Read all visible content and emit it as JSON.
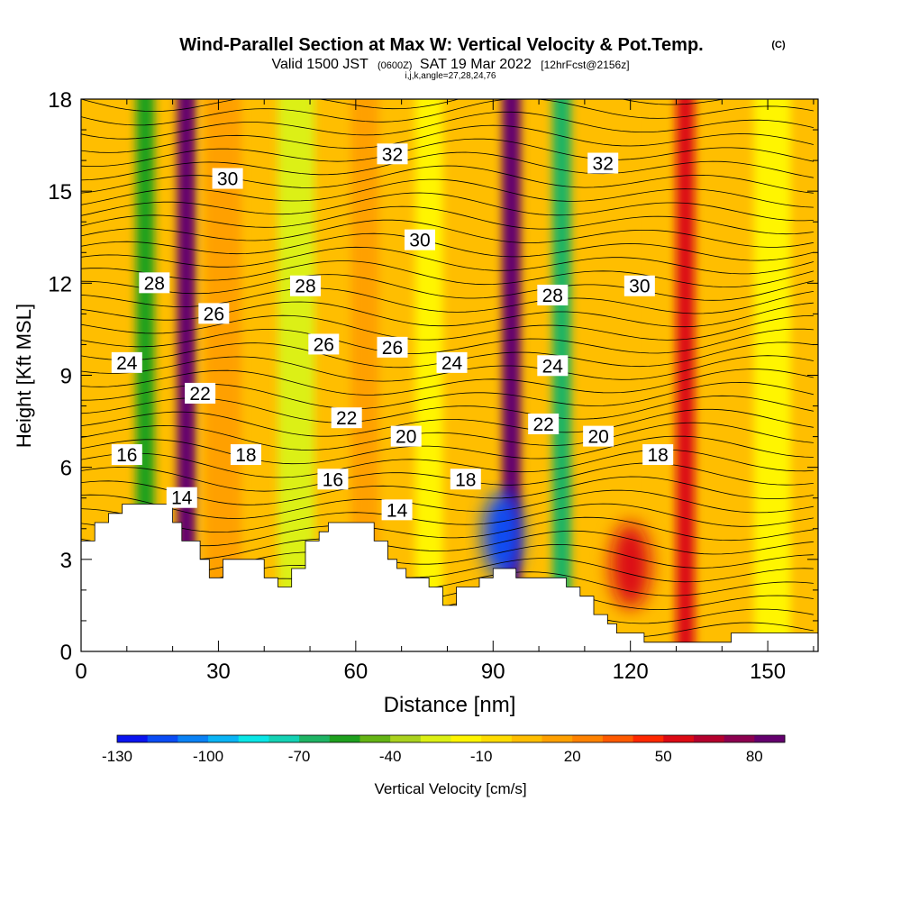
{
  "chart_data": {
    "type": "heatmap",
    "title": "Wind-Parallel Section at Max W: Vertical Velocity & Pot.Temp.",
    "title_mark": "(C)",
    "subtitle_parts": [
      "Valid 1500 JST",
      "(0600Z)",
      "SAT 19 Mar 2022",
      "[12hrFcst@2156z]"
    ],
    "subtitle3": "i,j,k,angle=27,28,24,76",
    "xlabel": "Distance [nm]",
    "ylabel": "Height [Kft MSL]",
    "xlim": [
      0,
      161
    ],
    "ylim": [
      0,
      18
    ],
    "x_ticks": [
      0,
      30,
      60,
      90,
      120,
      150
    ],
    "y_ticks": [
      0,
      3,
      6,
      9,
      12,
      15,
      18
    ],
    "colorbar": {
      "label": "Vertical Velocity [cm/s]",
      "tick_labels": [
        "-130",
        "-100",
        "-70",
        "-40",
        "-10",
        "20",
        "50",
        "80"
      ],
      "tick_values": [
        -130,
        -100,
        -70,
        -40,
        -10,
        20,
        50,
        80
      ],
      "range": [
        -130,
        90
      ],
      "colors": [
        "#0a14f0",
        "#0a4cf5",
        "#0a82f5",
        "#0ab4f5",
        "#0ae6e6",
        "#14d2b4",
        "#1eb464",
        "#1ea01e",
        "#64b414",
        "#aad21e",
        "#dcf014",
        "#fff500",
        "#ffdc00",
        "#ffbe00",
        "#ffa000",
        "#ff8200",
        "#ff5a00",
        "#ff2800",
        "#dc0a14",
        "#b4002d",
        "#8c0050",
        "#64006e"
      ]
    },
    "streaks": [
      {
        "x": 14,
        "w": 4,
        "value": -60
      },
      {
        "x": 23,
        "w": 4,
        "value": 80
      },
      {
        "x": 31,
        "w": 8,
        "value": 10
      },
      {
        "x": 47,
        "w": 8,
        "value": -30
      },
      {
        "x": 62,
        "w": 6,
        "value": 20
      },
      {
        "x": 76,
        "w": 6,
        "value": -20
      },
      {
        "x": 94,
        "w": 4,
        "value": 80
      },
      {
        "x": 105,
        "w": 4,
        "value": -70
      },
      {
        "x": 117,
        "w": 6,
        "value": 0
      },
      {
        "x": 132,
        "w": 4,
        "value": 50
      },
      {
        "x": 151,
        "w": 8,
        "value": -20
      }
    ],
    "blobs": [
      {
        "x": 92,
        "y": 3.8,
        "value": -120
      },
      {
        "x": 120,
        "y": 2.8,
        "value": 50
      }
    ],
    "terrain": [
      [
        0,
        3.6
      ],
      [
        3,
        3.6
      ],
      [
        3,
        4.2
      ],
      [
        6,
        4.2
      ],
      [
        6,
        4.5
      ],
      [
        9,
        4.5
      ],
      [
        9,
        4.8
      ],
      [
        20,
        4.8
      ],
      [
        20,
        4.2
      ],
      [
        22,
        4.2
      ],
      [
        22,
        3.6
      ],
      [
        26,
        3.6
      ],
      [
        26,
        3.0
      ],
      [
        28,
        3.0
      ],
      [
        28,
        2.4
      ],
      [
        31,
        2.4
      ],
      [
        31,
        3.0
      ],
      [
        40,
        3.0
      ],
      [
        40,
        2.4
      ],
      [
        43,
        2.4
      ],
      [
        43,
        2.1
      ],
      [
        46,
        2.1
      ],
      [
        46,
        2.7
      ],
      [
        49,
        2.7
      ],
      [
        49,
        3.6
      ],
      [
        52,
        3.6
      ],
      [
        52,
        3.9
      ],
      [
        54,
        3.9
      ],
      [
        54,
        4.2
      ],
      [
        64,
        4.2
      ],
      [
        64,
        3.6
      ],
      [
        67,
        3.6
      ],
      [
        67,
        3.0
      ],
      [
        69,
        3.0
      ],
      [
        69,
        2.7
      ],
      [
        71,
        2.7
      ],
      [
        71,
        2.4
      ],
      [
        76,
        2.4
      ],
      [
        76,
        2.1
      ],
      [
        79,
        2.1
      ],
      [
        79,
        1.5
      ],
      [
        82,
        1.5
      ],
      [
        82,
        2.1
      ],
      [
        87,
        2.1
      ],
      [
        87,
        2.4
      ],
      [
        90,
        2.4
      ],
      [
        90,
        2.7
      ],
      [
        95,
        2.7
      ],
      [
        95,
        2.4
      ],
      [
        106,
        2.4
      ],
      [
        106,
        2.1
      ],
      [
        109,
        2.1
      ],
      [
        109,
        1.8
      ],
      [
        112,
        1.8
      ],
      [
        112,
        1.2
      ],
      [
        115,
        1.2
      ],
      [
        115,
        0.9
      ],
      [
        117,
        0.9
      ],
      [
        117,
        0.6
      ],
      [
        123,
        0.6
      ],
      [
        123,
        0.3
      ],
      [
        142,
        0.3
      ],
      [
        142,
        0.6
      ],
      [
        161,
        0.6
      ]
    ],
    "theta_labels": [
      {
        "text": "32",
        "x": 68,
        "y": 16.2
      },
      {
        "text": "32",
        "x": 114,
        "y": 15.9
      },
      {
        "text": "30",
        "x": 32,
        "y": 15.4
      },
      {
        "text": "30",
        "x": 74,
        "y": 13.4
      },
      {
        "text": "30",
        "x": 122,
        "y": 11.9
      },
      {
        "text": "28",
        "x": 16,
        "y": 12.0
      },
      {
        "text": "28",
        "x": 49,
        "y": 11.9
      },
      {
        "text": "28",
        "x": 103,
        "y": 11.6
      },
      {
        "text": "26",
        "x": 29,
        "y": 11.0
      },
      {
        "text": "26",
        "x": 53,
        "y": 10.0
      },
      {
        "text": "26",
        "x": 68,
        "y": 9.9
      },
      {
        "text": "24",
        "x": 10,
        "y": 9.4
      },
      {
        "text": "24",
        "x": 81,
        "y": 9.4
      },
      {
        "text": "24",
        "x": 103,
        "y": 9.3
      },
      {
        "text": "22",
        "x": 26,
        "y": 8.4
      },
      {
        "text": "22",
        "x": 58,
        "y": 7.6
      },
      {
        "text": "22",
        "x": 101,
        "y": 7.4
      },
      {
        "text": "20",
        "x": 71,
        "y": 7.0
      },
      {
        "text": "20",
        "x": 113,
        "y": 7.0
      },
      {
        "text": "18",
        "x": 36,
        "y": 6.4
      },
      {
        "text": "18",
        "x": 84,
        "y": 5.6
      },
      {
        "text": "18",
        "x": 126,
        "y": 6.4
      },
      {
        "text": "16",
        "x": 10,
        "y": 6.4
      },
      {
        "text": "16",
        "x": 55,
        "y": 5.6
      },
      {
        "text": "14",
        "x": 22,
        "y": 5.0
      },
      {
        "text": "14",
        "x": 69,
        "y": 4.6
      }
    ]
  }
}
